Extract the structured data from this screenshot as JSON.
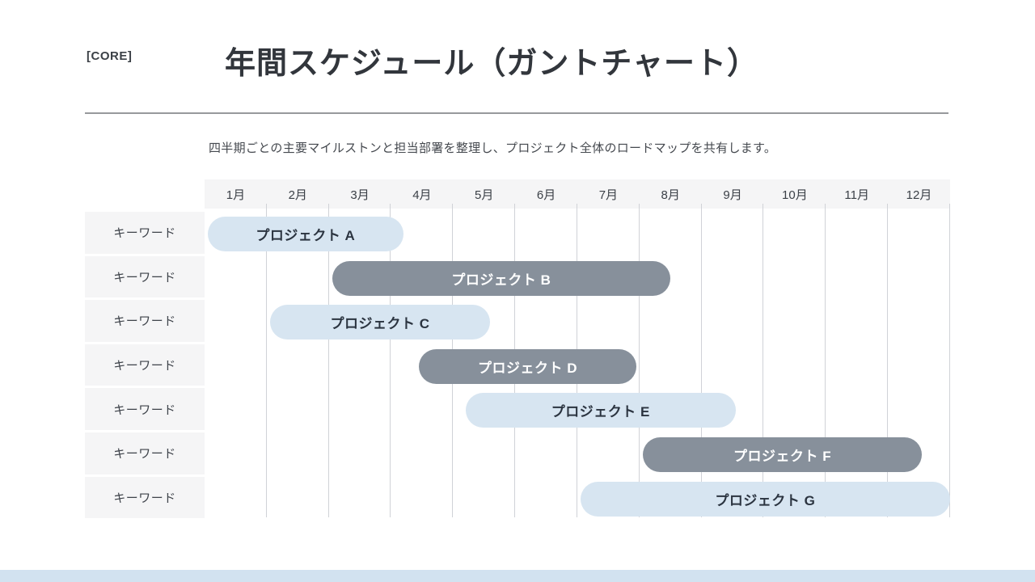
{
  "slide": {
    "brand": "[CORE]",
    "title": "年間スケジュール（ガントチャート）",
    "subtitle": "四半期ごとの主要マイルストンと担当部署を整理し、プロジェクト全体のロードマップを共有します。"
  },
  "chart_data": {
    "type": "bar",
    "subtype": "gantt",
    "orientation": "horizontal",
    "title": "年間スケジュール（ガントチャート）",
    "x_categories": [
      "1月",
      "2月",
      "3月",
      "4月",
      "5月",
      "6月",
      "7月",
      "8月",
      "9月",
      "10月",
      "11月",
      "12月"
    ],
    "xlim": [
      0,
      12
    ],
    "grid": "vertical-month-lines",
    "legend": "none",
    "row_label_text": "キーワード",
    "rows": [
      {
        "label": "キーワード",
        "task": "プロジェクト A",
        "start_month": 0.05,
        "end_month": 3.2,
        "variant": "light"
      },
      {
        "label": "キーワード",
        "task": "プロジェクト B",
        "start_month": 2.05,
        "end_month": 7.5,
        "variant": "dark"
      },
      {
        "label": "キーワード",
        "task": "プロジェクト C",
        "start_month": 1.05,
        "end_month": 4.6,
        "variant": "light"
      },
      {
        "label": "キーワード",
        "task": "プロジェクト D",
        "start_month": 3.45,
        "end_month": 6.95,
        "variant": "dark"
      },
      {
        "label": "キーワード",
        "task": "プロジェクト E",
        "start_month": 4.2,
        "end_month": 8.55,
        "variant": "light"
      },
      {
        "label": "キーワード",
        "task": "プロジェクト F",
        "start_month": 7.05,
        "end_month": 11.55,
        "variant": "dark"
      },
      {
        "label": "キーワード",
        "task": "プロジェクト G",
        "start_month": 6.05,
        "end_month": 12,
        "variant": "light"
      }
    ],
    "colors": {
      "light_bar": "#d7e5f1",
      "dark_bar": "#87909b",
      "light_bar_text": "#2b3440",
      "dark_bar_text": "#ffffff",
      "header_bg": "#f5f5f6",
      "sidebar_bg": "#f5f5f6",
      "gridline": "#d0d2d7",
      "footer_bar": "#d2e2f0"
    }
  }
}
